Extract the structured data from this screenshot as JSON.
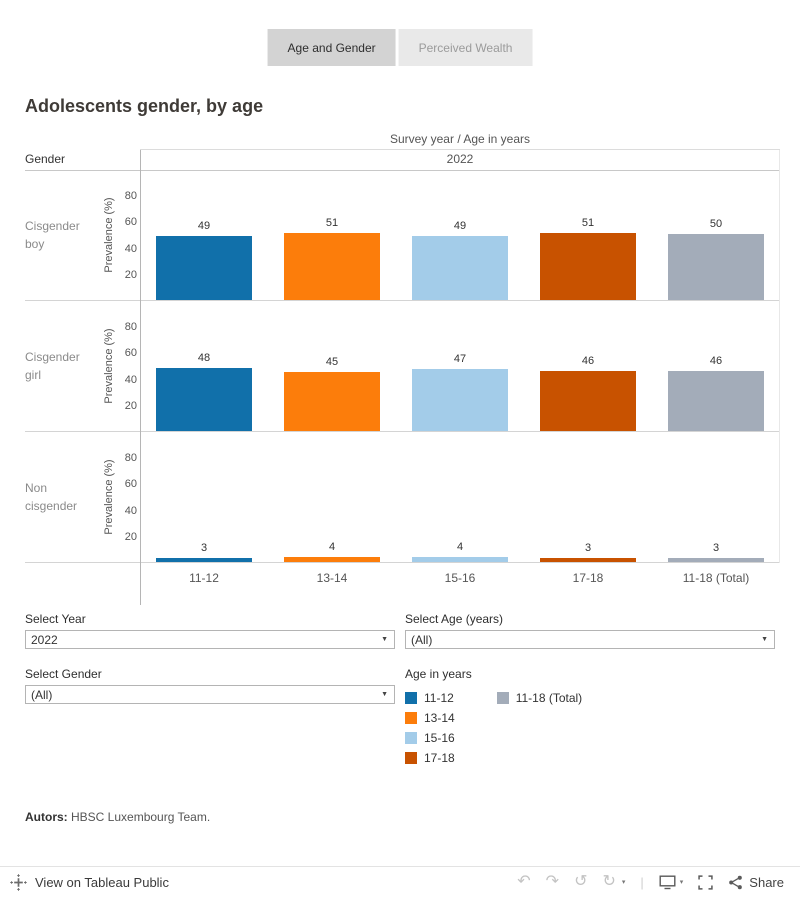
{
  "tabs": [
    {
      "label": "Age and Gender",
      "active": true
    },
    {
      "label": "Perceived Wealth",
      "active": false
    }
  ],
  "title": "Adolescents gender, by age",
  "chart_data": {
    "type": "bar",
    "title": "Adolescents gender, by age",
    "col_header": "Survey year / Age in years",
    "col_value": "2022",
    "row_dimension": "Gender",
    "ylabel": "Prevalence (%)",
    "yticks": [
      20,
      40,
      60,
      80
    ],
    "ylim": [
      0,
      90
    ],
    "grid": false,
    "categories": [
      "11-12",
      "13-14",
      "15-16",
      "17-18",
      "11-18 (Total)"
    ],
    "colors": [
      "#1170aa",
      "#fc7d0b",
      "#a3cce9",
      "#c85200",
      "#a3acb9"
    ],
    "rows": [
      {
        "label": "Cisgender boy",
        "values": [
          49,
          51,
          49,
          51,
          50
        ]
      },
      {
        "label": "Cisgender girl",
        "values": [
          48,
          45,
          47,
          46,
          46
        ]
      },
      {
        "label": "Non cisgender",
        "values": [
          3,
          4,
          4,
          3,
          3
        ]
      }
    ]
  },
  "filters": [
    {
      "label": "Select Year",
      "value": "2022"
    },
    {
      "label": "Select Age (years)",
      "value": "(All)"
    },
    {
      "label": "Select Gender",
      "value": "(All)"
    }
  ],
  "legend": {
    "title": "Age in years",
    "items": [
      {
        "label": "11-12",
        "color": "#1170aa"
      },
      {
        "label": "13-14",
        "color": "#fc7d0b"
      },
      {
        "label": "15-16",
        "color": "#a3cce9"
      },
      {
        "label": "17-18",
        "color": "#c85200"
      },
      {
        "label": "11-18 (Total)",
        "color": "#a3acb9"
      }
    ]
  },
  "footer": {
    "authors_label": "Autors:",
    "authors_text": " HBSC Luxembourg Team."
  },
  "toolbar": {
    "view_label": "View on Tableau Public",
    "share_label": "Share",
    "icon_glyphs": {
      "undo": "↶",
      "redo": "↷",
      "reset": "↺",
      "refresh": "↻",
      "caret": "▾",
      "divider": "|"
    }
  }
}
